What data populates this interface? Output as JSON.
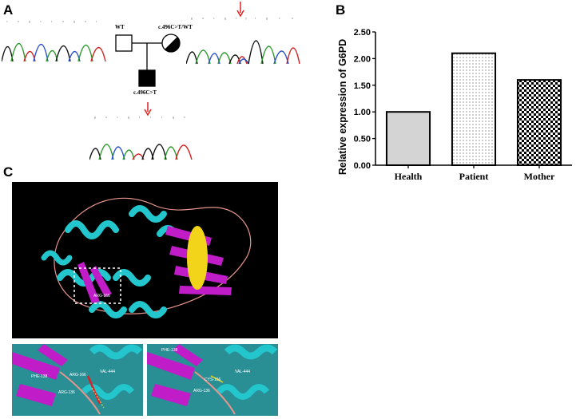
{
  "panels": {
    "a": "A",
    "b": "B",
    "c": "C"
  },
  "pedigree": {
    "father_label": "WT",
    "mother_label": "c.496C>T/WT",
    "child_label": "c.496C>T"
  },
  "protein_labels": {
    "main": "ARG-166",
    "zoom_left": [
      "PHE-138",
      "ARG-166",
      "VAL-444",
      "ARG-136"
    ],
    "zoom_right": [
      "PHE-138",
      "CYS-166",
      "VAL-444",
      "ARG-136"
    ]
  },
  "colors": {
    "helix": "#22c6cc",
    "sheet": "#c01cc8",
    "loop": "#e7958c",
    "ligand": "#f2d51a",
    "bar_health": "#d4d4d4",
    "arrow": "#e02020"
  },
  "chart_data": {
    "type": "bar",
    "categories": [
      "Health",
      "Patient",
      "Mother"
    ],
    "values": [
      1.0,
      2.1,
      1.6
    ],
    "fills": [
      "solid-grey",
      "dots",
      "checkerboard"
    ],
    "ylabel": "Relative expression of G6PD",
    "xlabel": "",
    "ylim": [
      0,
      2.5
    ],
    "yticks": [
      "0.00",
      "0.50",
      "1.00",
      "1.50",
      "2.00",
      "2.50"
    ]
  }
}
